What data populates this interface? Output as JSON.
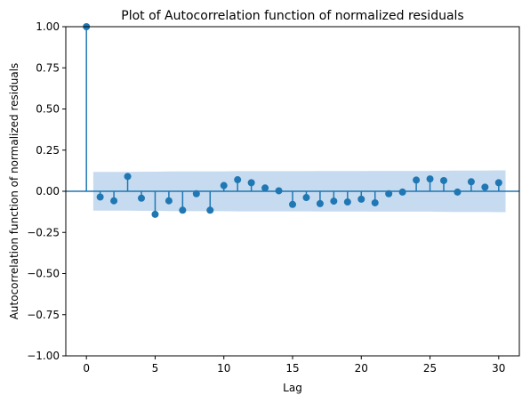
{
  "chart_data": {
    "type": "scatter",
    "subtype": "stem",
    "title": "Plot of Autocorrelation function of normalized residuals",
    "xlabel": "Lag",
    "ylabel": "Autocorrelation function of normalized residuals",
    "xlim": [
      -1.5,
      31.5
    ],
    "ylim": [
      -1.0,
      1.0
    ],
    "xticks": [
      0,
      5,
      10,
      15,
      20,
      25,
      30
    ],
    "xtick_labels": [
      "0",
      "5",
      "10",
      "15",
      "20",
      "25",
      "30"
    ],
    "yticks": [
      -1.0,
      -0.75,
      -0.5,
      -0.25,
      0.0,
      0.25,
      0.5,
      0.75,
      1.0
    ],
    "ytick_labels": [
      "−1.00",
      "−0.75",
      "−0.50",
      "−0.25",
      "0.00",
      "0.25",
      "0.50",
      "0.75",
      "1.00"
    ],
    "grid": false,
    "legend": "none",
    "colors": {
      "series": "#1f77b4",
      "band": "#c6dbef"
    },
    "x": [
      0,
      1,
      2,
      3,
      4,
      5,
      6,
      7,
      8,
      9,
      10,
      11,
      12,
      13,
      14,
      15,
      16,
      17,
      18,
      19,
      20,
      21,
      22,
      23,
      24,
      25,
      26,
      27,
      28,
      29,
      30
    ],
    "values": [
      1.0,
      -0.035,
      -0.058,
      0.09,
      -0.042,
      -0.14,
      -0.058,
      -0.115,
      -0.015,
      -0.115,
      0.035,
      0.07,
      0.052,
      0.02,
      0.003,
      -0.08,
      -0.038,
      -0.075,
      -0.06,
      -0.065,
      -0.048,
      -0.07,
      -0.015,
      -0.005,
      0.068,
      0.075,
      0.065,
      -0.005,
      0.058,
      0.025,
      0.052
    ],
    "confidence_band": {
      "x": [
        0.5,
        1,
        2,
        3,
        4,
        5,
        6,
        7,
        8,
        9,
        10,
        11,
        12,
        13,
        14,
        15,
        16,
        17,
        18,
        19,
        20,
        21,
        22,
        23,
        24,
        25,
        26,
        27,
        28,
        29,
        30,
        30.5
      ],
      "upper": [
        0.118,
        0.118,
        0.118,
        0.118,
        0.119,
        0.119,
        0.12,
        0.121,
        0.121,
        0.121,
        0.121,
        0.122,
        0.122,
        0.122,
        0.122,
        0.122,
        0.122,
        0.123,
        0.123,
        0.123,
        0.123,
        0.124,
        0.124,
        0.124,
        0.124,
        0.124,
        0.125,
        0.126,
        0.126,
        0.126,
        0.127,
        0.127
      ]
    }
  }
}
